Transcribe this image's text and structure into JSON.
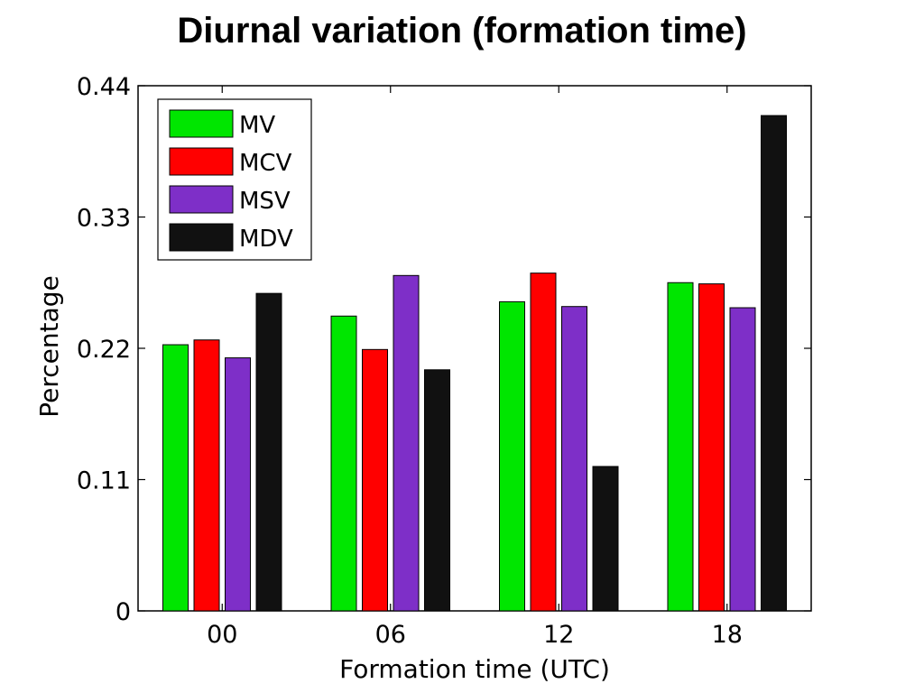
{
  "slide": {
    "title": "Diurnal variation (formation time)"
  },
  "chart_data": {
    "type": "bar",
    "categories": [
      "00",
      "06",
      "12",
      "18"
    ],
    "series": [
      {
        "name": "MV",
        "values": [
          0.223,
          0.247,
          0.259,
          0.275
        ]
      },
      {
        "name": "MCV",
        "values": [
          0.227,
          0.219,
          0.283,
          0.274
        ]
      },
      {
        "name": "MSV",
        "values": [
          0.212,
          0.281,
          0.255,
          0.254
        ]
      },
      {
        "name": "MDV",
        "values": [
          0.266,
          0.202,
          0.121,
          0.415
        ]
      }
    ],
    "colors": [
      "#00e600",
      "#ff0000",
      "#7e2fc8",
      "#111111"
    ],
    "title": "",
    "xlabel": "Formation time (UTC)",
    "ylabel": "Percentage",
    "ylim": [
      0,
      0.44
    ],
    "yticks": [
      0,
      0.11,
      0.22,
      0.33,
      0.44
    ],
    "ytick_labels": [
      "0",
      "0.11",
      "0.22",
      "0.33",
      "0.44"
    ],
    "grid": false,
    "legend_position": "top-left"
  }
}
